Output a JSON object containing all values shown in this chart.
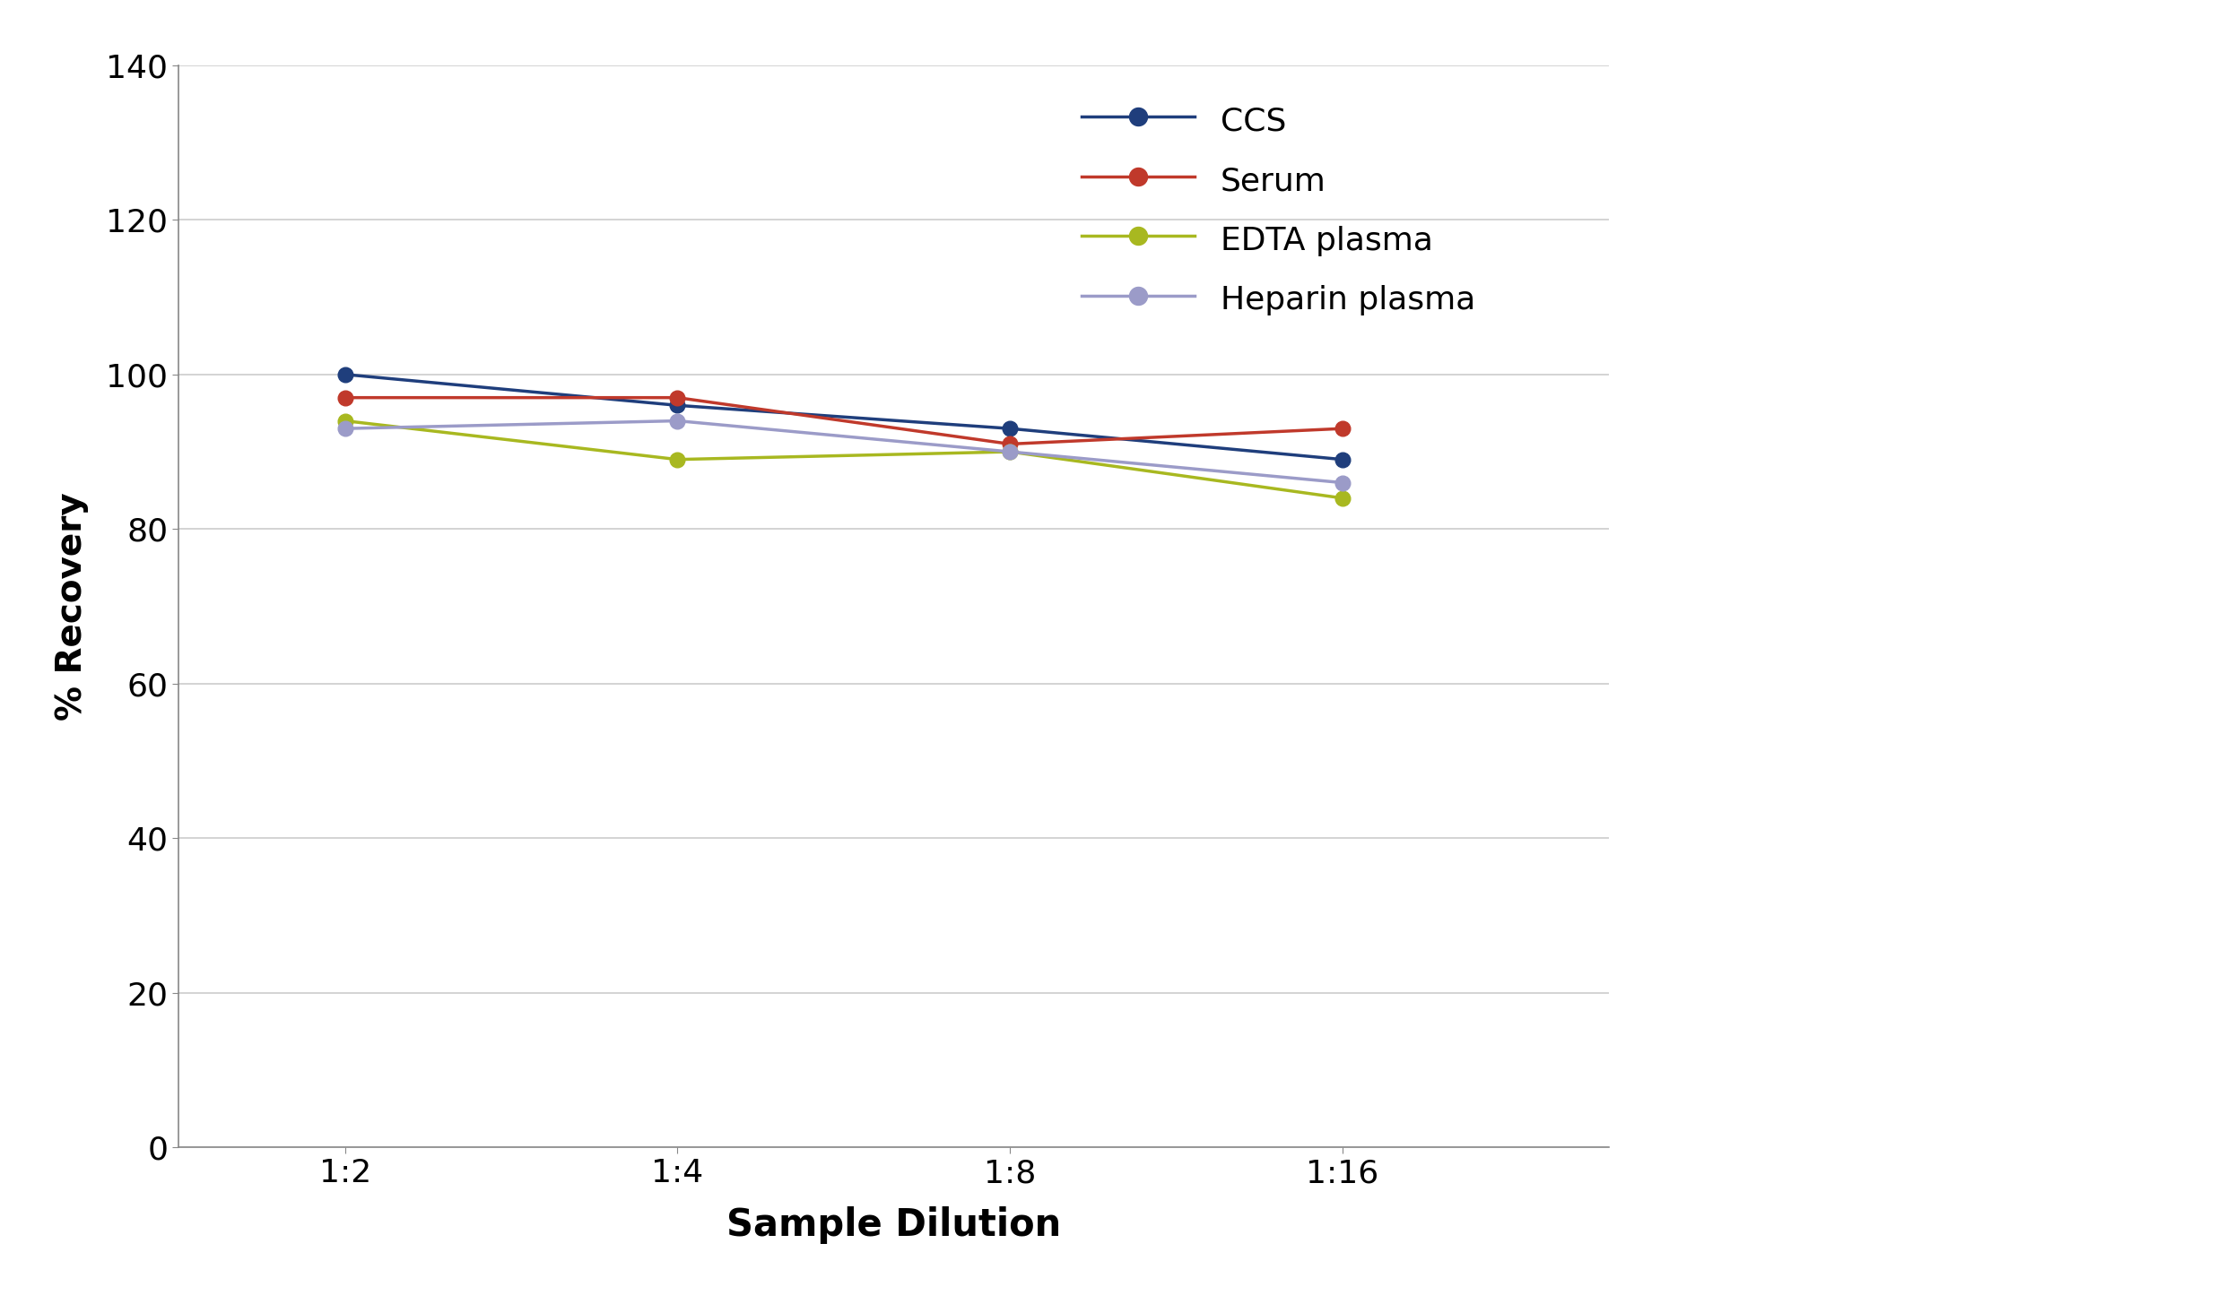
{
  "x_labels": [
    "1:2",
    "1:4",
    "1:8",
    "1:16"
  ],
  "x_positions": [
    1,
    2,
    3,
    4
  ],
  "series": [
    {
      "name": "CCS",
      "color": "#1f3e7c",
      "values": [
        100,
        96,
        93,
        89
      ]
    },
    {
      "name": "Serum",
      "color": "#c0392b",
      "values": [
        97,
        97,
        91,
        93
      ]
    },
    {
      "name": "EDTA plasma",
      "color": "#a8b820",
      "values": [
        94,
        89,
        90,
        84
      ]
    },
    {
      "name": "Heparin plasma",
      "color": "#9b9bc8",
      "values": [
        93,
        94,
        90,
        86
      ]
    }
  ],
  "ylabel": "% Recovery",
  "xlabel": "Sample Dilution",
  "ylim": [
    0,
    140
  ],
  "yticks": [
    0,
    20,
    40,
    60,
    80,
    100,
    120,
    140
  ],
  "grid_color": "#cccccc",
  "background_color": "#ffffff",
  "marker_size": 12,
  "line_width": 2.5,
  "ylabel_fontsize": 28,
  "xlabel_fontsize": 30,
  "tick_fontsize": 26,
  "legend_fontsize": 26
}
